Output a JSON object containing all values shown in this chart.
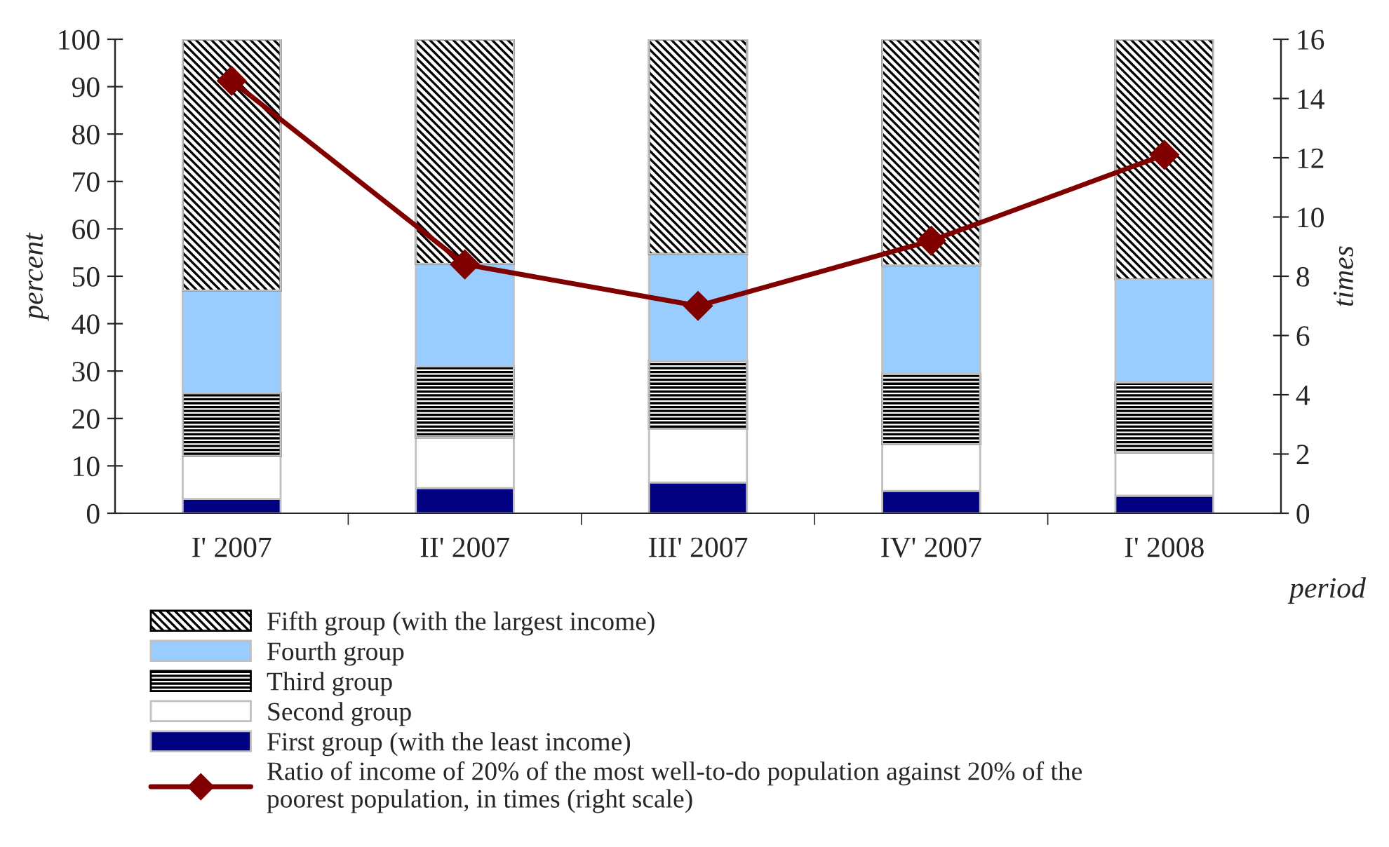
{
  "chart_data": {
    "type": "bar",
    "stacked": true,
    "xlabel": "period",
    "ylabel": "percent",
    "y2label": "times",
    "categories": [
      "I' 2007",
      "II' 2007",
      "III' 2007",
      "IV' 2007",
      "I' 2008"
    ],
    "series": [
      {
        "name": "First group (with the least income)",
        "color": "#000080",
        "values": [
          3.0,
          5.3,
          6.5,
          4.7,
          3.7
        ]
      },
      {
        "name": "Second group",
        "color": "#ffffff",
        "values": [
          9.1,
          10.7,
          11.3,
          9.9,
          9.1
        ]
      },
      {
        "name": "Third group",
        "color": "#000000",
        "values": [
          13.3,
          15.0,
          14.4,
          14.8,
          14.8
        ]
      },
      {
        "name": "Fourth group",
        "color": "#99ccff",
        "values": [
          21.6,
          21.6,
          22.5,
          22.9,
          21.7
        ]
      },
      {
        "name": "Fifth group (with the largest income)",
        "color": "#000000",
        "values": [
          53.0,
          47.4,
          45.3,
          47.7,
          50.7
        ]
      },
      {
        "name": "Ratio of income of 20% of the most well-to-do population against 20% of the poorest population, in times (right scale)",
        "type": "line",
        "axis": "y2",
        "color": "#800000",
        "marker": "diamond",
        "values": [
          14.6,
          8.4,
          7.0,
          9.2,
          12.1
        ]
      }
    ],
    "ylim": [
      0,
      100
    ],
    "yticks": [
      0,
      10,
      20,
      30,
      40,
      50,
      60,
      70,
      80,
      90,
      100
    ],
    "y2lim": [
      0,
      16
    ],
    "y2ticks": [
      0,
      2,
      4,
      6,
      8,
      10,
      12,
      14,
      16
    ],
    "grid": false,
    "legend": "bottom"
  }
}
